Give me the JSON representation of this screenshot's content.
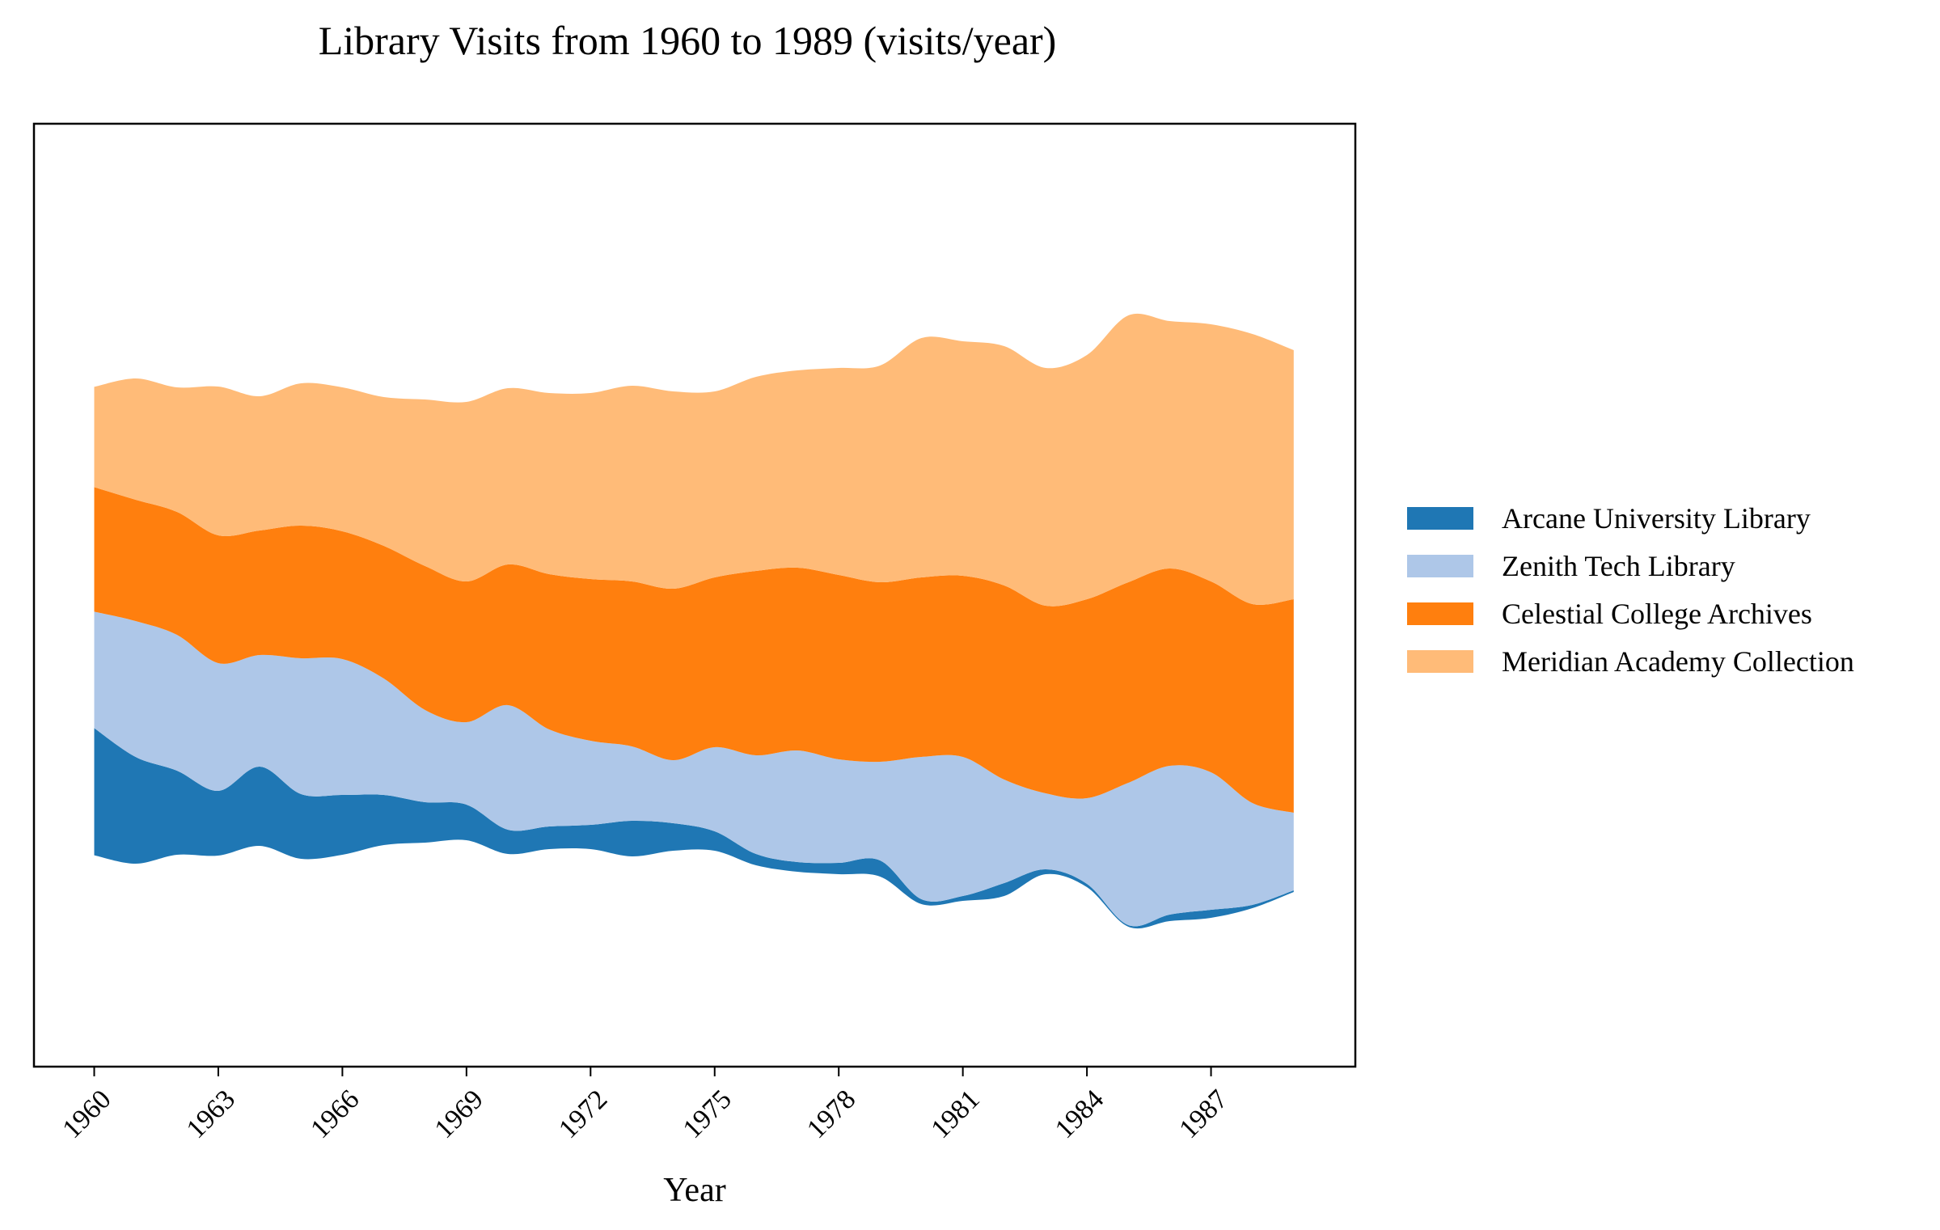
{
  "chart_data": {
    "type": "area",
    "stacked": true,
    "baseline": "wiggle",
    "title": "Library Visits from 1960 to 1989 (visits/year)",
    "xlabel": "Year",
    "ylabel": "",
    "x_ticks": [
      "1960",
      "1963",
      "1966",
      "1969",
      "1972",
      "1975",
      "1978",
      "1981",
      "1984",
      "1987"
    ],
    "x": [
      1960,
      1961,
      1962,
      1963,
      1964,
      1965,
      1966,
      1967,
      1968,
      1969,
      1970,
      1971,
      1972,
      1973,
      1974,
      1975,
      1976,
      1977,
      1978,
      1979,
      1980,
      1981,
      1982,
      1983,
      1984,
      1985,
      1986,
      1987,
      1988,
      1989
    ],
    "y_axis_visible": false,
    "grid": false,
    "legend_position": "right",
    "series": [
      {
        "name": "Arcane University Library",
        "color": "#1f77b4",
        "values": [
          393,
          330,
          260,
          200,
          245,
          200,
          185,
          155,
          125,
          110,
          75,
          70,
          75,
          110,
          85,
          60,
          35,
          30,
          35,
          50,
          15,
          15,
          40,
          15,
          10,
          5,
          20,
          25,
          10,
          5
        ]
      },
      {
        "name": "Zenith Tech Library",
        "color": "#aec7e8",
        "values": [
          360,
          420,
          420,
          395,
          345,
          420,
          420,
          360,
          285,
          255,
          385,
          300,
          260,
          230,
          195,
          260,
          305,
          345,
          320,
          305,
          440,
          430,
          320,
          235,
          265,
          440,
          460,
          425,
          315,
          240
        ]
      },
      {
        "name": "Celestial College Archives",
        "color": "#ff7f0e",
        "values": [
          385,
          375,
          380,
          395,
          385,
          410,
          395,
          410,
          445,
          435,
          435,
          480,
          500,
          510,
          530,
          525,
          570,
          565,
          570,
          555,
          555,
          560,
          600,
          580,
          615,
          620,
          610,
          590,
          615,
          660
        ]
      },
      {
        "name": "Meridian Academy Collection",
        "color": "#ffbb78",
        "values": [
          310,
          375,
          385,
          460,
          415,
          440,
          445,
          460,
          515,
          555,
          545,
          560,
          575,
          605,
          610,
          575,
          600,
          610,
          640,
          670,
          740,
          725,
          740,
          735,
          755,
          825,
          765,
          795,
          835,
          770
        ]
      }
    ]
  }
}
